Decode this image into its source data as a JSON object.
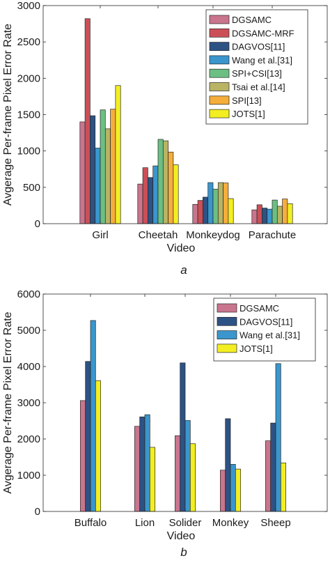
{
  "chart_data": [
    {
      "type": "bar",
      "caption": "a",
      "xlabel": "Video",
      "ylabel": "Avgerage Per-frame Pixel Error Rate",
      "ylim": [
        0,
        3000
      ],
      "yticks": [
        0,
        500,
        1000,
        1500,
        2000,
        2500,
        3000
      ],
      "grid": false,
      "legend_position": "top-right",
      "categories": [
        "Girl",
        "Cheetah",
        "Monkeydog",
        "Parachute"
      ],
      "series": [
        {
          "name": "DGSAMC",
          "color": "#c9758e",
          "values": [
            1400,
            545,
            265,
            190
          ]
        },
        {
          "name": "DGSAMC-MRF",
          "color": "#cc4f57",
          "values": [
            2820,
            770,
            320,
            260
          ]
        },
        {
          "name": "DAGVOS[11]",
          "color": "#2d5284",
          "values": [
            1485,
            635,
            365,
            215
          ]
        },
        {
          "name": "Wang et al.[31]",
          "color": "#3a96cc",
          "values": [
            1040,
            795,
            565,
            200
          ]
        },
        {
          "name": "SPI+CSI[13]",
          "color": "#6cbf82",
          "values": [
            1565,
            1160,
            475,
            325
          ]
        },
        {
          "name": "Tsai et al.[14]",
          "color": "#b8b464",
          "values": [
            1305,
            1140,
            565,
            240
          ]
        },
        {
          "name": "SPI[13]",
          "color": "#f5ad3c",
          "values": [
            1575,
            985,
            560,
            340
          ]
        },
        {
          "name": "JOTS[1]",
          "color": "#f2ee22",
          "values": [
            1900,
            810,
            345,
            275
          ]
        }
      ]
    },
    {
      "type": "bar",
      "caption": "b",
      "xlabel": "Video",
      "ylabel": "Avgerage Per-frame Pixel Error Rate",
      "ylim": [
        0,
        6000
      ],
      "yticks": [
        0,
        1000,
        2000,
        3000,
        4000,
        5000,
        6000
      ],
      "grid": false,
      "legend_position": "top-right",
      "categories": [
        "Buffalo",
        "Lion",
        "Solider",
        "Monkey",
        "Sheep"
      ],
      "series": [
        {
          "name": "DGSAMC",
          "color": "#c9758e",
          "values": [
            3060,
            2350,
            2090,
            1140,
            1950
          ]
        },
        {
          "name": "DAGVOS[11]",
          "color": "#2d5284",
          "values": [
            4140,
            2610,
            4100,
            2560,
            2440
          ]
        },
        {
          "name": "Wang et al.[31]",
          "color": "#3a96cc",
          "values": [
            5270,
            2670,
            2510,
            1300,
            4080
          ]
        },
        {
          "name": "JOTS[1]",
          "color": "#f2ee22",
          "values": [
            3610,
            1770,
            1870,
            1170,
            1340
          ]
        }
      ]
    }
  ]
}
